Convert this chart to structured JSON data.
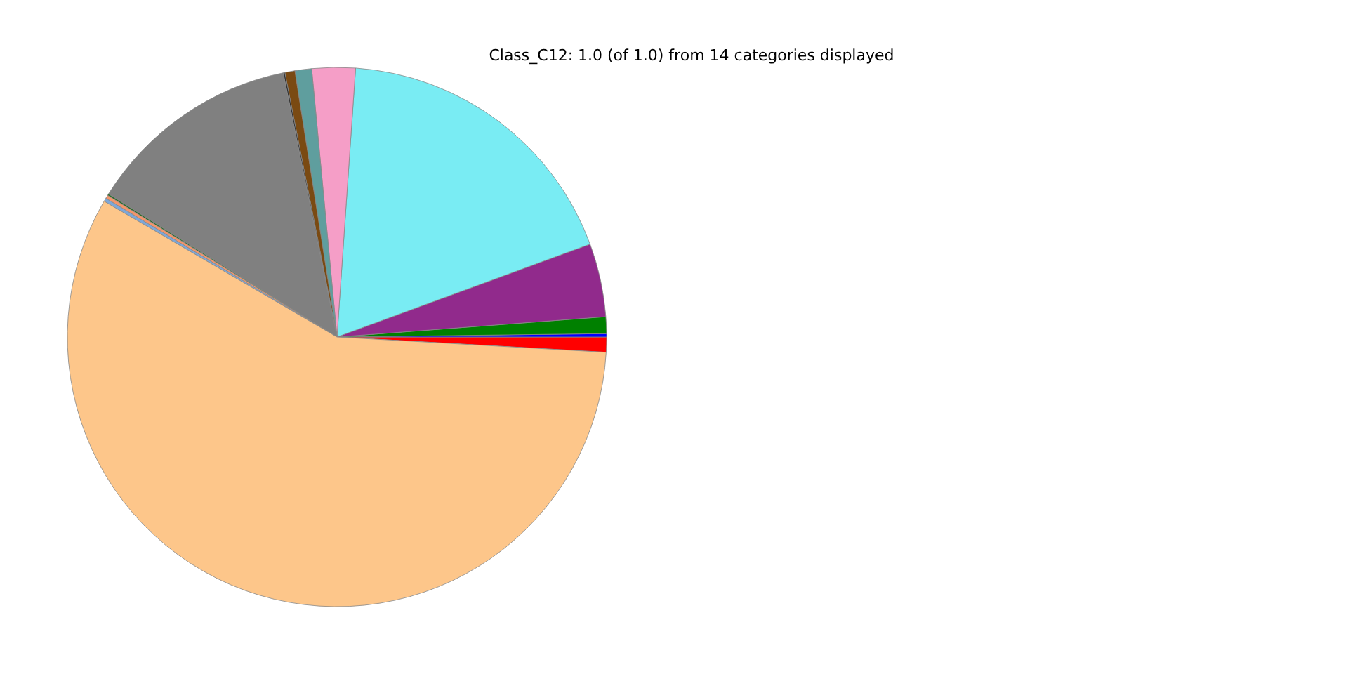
{
  "chart_data": {
    "type": "pie",
    "title": "Class_C12: 1.0 (of 1.0) from 14 categories displayed",
    "categories": [
      null,
      null,
      null,
      null,
      null,
      null,
      null,
      null,
      null,
      null,
      null,
      null,
      null,
      null
    ],
    "values": [
      0.9,
      0.2,
      1.0,
      4.4,
      18.3,
      2.6,
      1.0,
      0.6,
      0.1,
      12.9,
      0.1,
      0.2,
      0.2,
      57.5
    ],
    "colors": [
      "#ff0000",
      "#0000ff",
      "#008000",
      "#912a8c",
      "#79ecf3",
      "#f59ec7",
      "#5f9e9e",
      "#7a4a12",
      "#333333",
      "#808080",
      "#2e6b2e",
      "#f4956a",
      "#7ea7d8",
      "#fdc68a"
    ]
  }
}
